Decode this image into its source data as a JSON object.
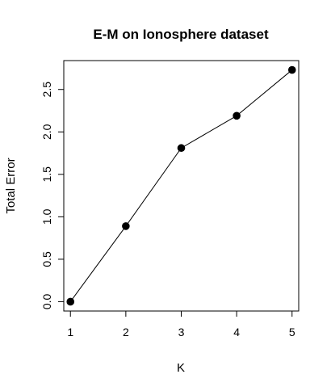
{
  "chart_data": {
    "type": "line",
    "title": "E-M on Ionosphere dataset",
    "xlabel": "K",
    "ylabel": "Total Error",
    "x": [
      1,
      2,
      3,
      4,
      5
    ],
    "series": [
      {
        "values": [
          0.0,
          0.89,
          1.81,
          2.19,
          2.73
        ]
      }
    ],
    "x_ticks": [
      "1",
      "2",
      "3",
      "4",
      "5"
    ],
    "y_ticks": [
      "0.0",
      "0.5",
      "1.0",
      "1.5",
      "2.0",
      "2.5"
    ],
    "xlim": [
      0.88,
      5.12
    ],
    "ylim": [
      -0.11,
      2.84
    ],
    "grid": false,
    "markers": "filled-circle",
    "line_color": "#000000"
  }
}
